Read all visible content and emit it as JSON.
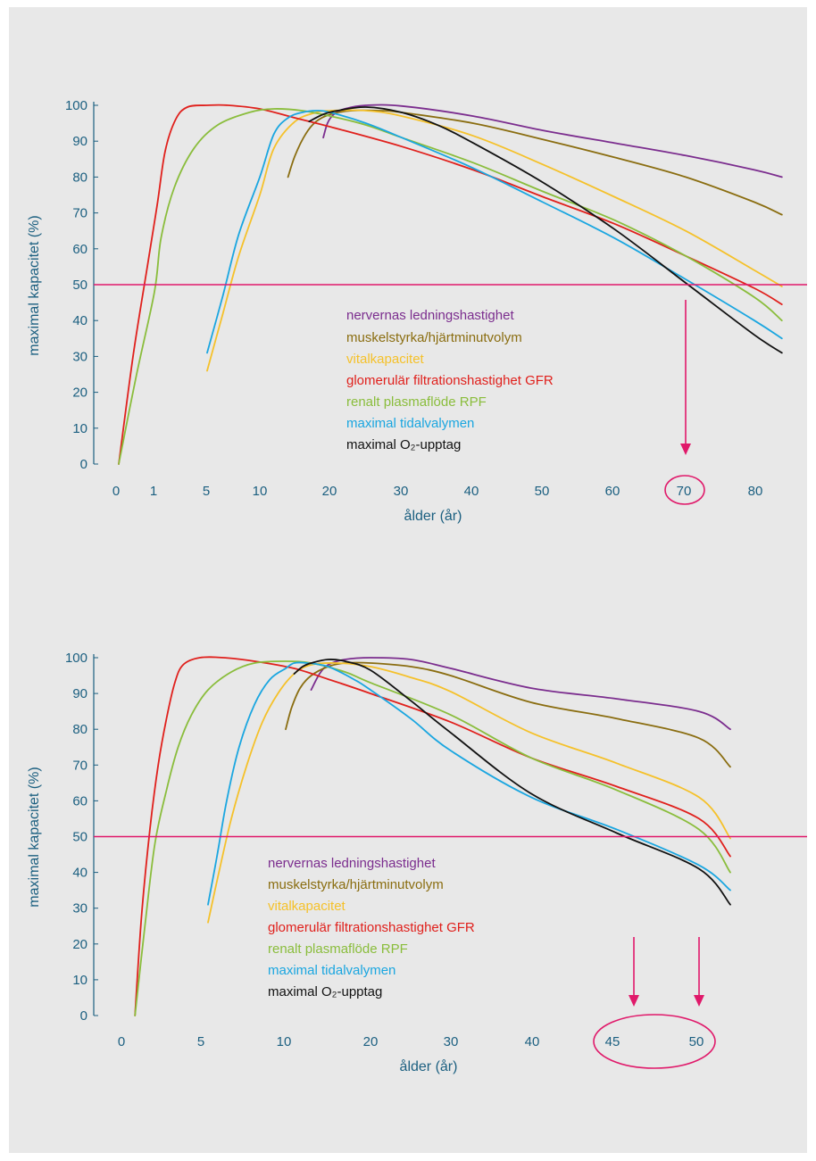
{
  "colors": {
    "axis": "#1b5f80",
    "tick_text": "#1b5f80",
    "threshold": "#e0196a",
    "panel_bg": "#e8e8e8"
  },
  "chart_data": [
    {
      "type": "line",
      "xlabel": "ålder (år)",
      "ylabel": "maximal kapacitet (%)",
      "x_ticks": [
        "0",
        "1",
        "5",
        "10",
        "20",
        "30",
        "40",
        "50",
        "60",
        "70",
        "80"
      ],
      "y_ticks": [
        0,
        10,
        20,
        30,
        40,
        50,
        60,
        70,
        80,
        90,
        100
      ],
      "ylim": [
        0,
        100
      ],
      "threshold_y": 50,
      "highlight_tick": "70",
      "arrows_at_x": [
        70
      ],
      "grid": false,
      "legend_position": "center",
      "series": [
        {
          "name": "nervernas ledningshastighet",
          "color": "#7b2d8e",
          "x": [
            19,
            19.6,
            20.5,
            22,
            25,
            30,
            40,
            50,
            60,
            70,
            80,
            84
          ],
          "y": [
            91,
            95,
            97.5,
            99,
            100,
            99.8,
            97,
            93,
            89.5,
            86,
            82,
            80
          ]
        },
        {
          "name": "muskelstyrka/hjärtminutvolym",
          "color": "#8a6d10",
          "x": [
            14,
            15,
            16.5,
            18,
            20,
            23,
            27,
            30,
            40,
            50,
            60,
            70,
            80,
            84
          ],
          "y": [
            80,
            86,
            92,
            95.5,
            97.5,
            98.5,
            98.5,
            98,
            95,
            90.5,
            85.5,
            80,
            73,
            69.5
          ]
        },
        {
          "name": "vitalkapacitet",
          "color": "#f5c12a",
          "x": [
            5,
            6.5,
            8,
            10,
            12,
            15,
            18,
            20,
            25,
            30,
            40,
            50,
            60,
            70,
            80,
            84
          ],
          "y": [
            26,
            42,
            58,
            75,
            88,
            95.5,
            98,
            98.5,
            98.5,
            97,
            91.5,
            83.5,
            74.5,
            65,
            54,
            49.5
          ]
        },
        {
          "name": "glomerulär filtrationshastighet GFR",
          "color": "#e0201c",
          "x": [
            0,
            0.4,
            0.8,
            1.2,
            1.8,
            2.6,
            3.5,
            5,
            7,
            10,
            15,
            20,
            30,
            40,
            50,
            60,
            70,
            80,
            84
          ],
          "y": [
            0,
            30,
            55,
            72,
            87,
            96,
            99.5,
            100,
            100,
            99,
            96.5,
            94,
            88.5,
            82,
            74.5,
            67,
            58,
            49,
            44.5
          ]
        },
        {
          "name": "renalt plasmaflöde RPF",
          "color": "#8abd3c",
          "x": [
            0,
            0.5,
            1,
            1.5,
            2.5,
            4,
            6,
            9,
            12,
            16,
            20,
            25,
            30,
            40,
            50,
            60,
            70,
            80,
            84
          ],
          "y": [
            0,
            25,
            48,
            63,
            77,
            88,
            94.5,
            98,
            99,
            98.5,
            97,
            94.5,
            91,
            84,
            76,
            68,
            58,
            46.5,
            40
          ]
        },
        {
          "name": "maximal tidalvalymen",
          "color": "#1aa6e0",
          "x": [
            5,
            6.5,
            8,
            10,
            12,
            14,
            16,
            18,
            20,
            25,
            30,
            40,
            50,
            60,
            70,
            80,
            84
          ],
          "y": [
            31,
            47,
            64,
            80,
            92,
            96.5,
            98,
            98.5,
            98,
            95,
            91,
            82.5,
            73,
            63,
            51.5,
            40,
            35
          ]
        },
        {
          "name": "maximal O₂-upptag",
          "color": "#111111",
          "x": [
            17,
            19,
            21,
            25,
            30,
            35,
            40,
            50,
            60,
            70,
            80,
            84
          ],
          "y": [
            95.5,
            97.5,
            98.5,
            99.5,
            98,
            94.5,
            89.5,
            78.5,
            65.5,
            50.5,
            36,
            31
          ]
        }
      ]
    },
    {
      "type": "line",
      "xlabel": "ålder (år)",
      "ylabel": "maximal kapacitet (%)",
      "x_ticks": [
        "0",
        "5",
        "10",
        "20",
        "30",
        "40",
        "45",
        "50"
      ],
      "y_ticks": [
        0,
        10,
        20,
        30,
        40,
        50,
        60,
        70,
        80,
        90,
        100
      ],
      "ylim": [
        0,
        100
      ],
      "threshold_y": 50,
      "highlight_tick": "45–50",
      "arrows_at_x": [
        46,
        50
      ],
      "grid": false,
      "legend_position": "center",
      "series": [
        {
          "name": "nervernas ledningshastighet",
          "color": "#7b2d8e",
          "x": [
            13,
            14,
            15,
            17,
            20,
            25,
            30,
            40,
            45,
            50,
            53
          ],
          "y": [
            91,
            95.5,
            98,
            99.5,
            100,
            99.5,
            97,
            91.5,
            88.5,
            85,
            80
          ]
        },
        {
          "name": "muskelstyrka/hjärtminutvolym",
          "color": "#8a6d10",
          "x": [
            10,
            10.7,
            11.7,
            13,
            15,
            17,
            20,
            25,
            30,
            40,
            45,
            50,
            53
          ],
          "y": [
            80,
            86,
            91.5,
            95,
            97.5,
            98.5,
            98.5,
            97.5,
            95,
            87.5,
            83,
            77.5,
            69.5
          ]
        },
        {
          "name": "vitalkapacitet",
          "color": "#f5c12a",
          "x": [
            5,
            5.7,
            6.5,
            7.5,
            8.5,
            9.5,
            11,
            13,
            16,
            20,
            25,
            30,
            40,
            45,
            50,
            53
          ],
          "y": [
            26,
            40,
            55,
            70,
            82,
            90,
            95.5,
            98,
            98.5,
            97.5,
            94.5,
            90.5,
            79,
            70.5,
            61,
            49.5
          ]
        },
        {
          "name": "glomerulär filtrationshastighet GFR",
          "color": "#e0201c",
          "x": [
            0.6,
            1,
            1.5,
            2,
            2.5,
            3,
            3.5,
            4.5,
            6,
            8,
            11,
            15,
            20,
            30,
            40,
            45,
            50,
            53
          ],
          "y": [
            0,
            28,
            52,
            70,
            83,
            93,
            98,
            100,
            100,
            99,
            97,
            94,
            90,
            82,
            72,
            64,
            55,
            44.5
          ]
        },
        {
          "name": "renalt plasmaflöde RPF",
          "color": "#8abd3c",
          "x": [
            0.6,
            1.2,
            1.8,
            2.5,
            3.2,
            4,
            5,
            6.5,
            8,
            10,
            13,
            17,
            20,
            30,
            40,
            45,
            50,
            53
          ],
          "y": [
            0,
            25,
            48,
            63,
            75,
            84,
            91,
            96,
            98.5,
            99,
            98.5,
            96,
            93,
            84,
            72,
            63,
            52,
            40
          ]
        },
        {
          "name": "maximal tidalvalymen",
          "color": "#1aa6e0",
          "x": [
            5,
            5.6,
            6.2,
            7,
            8,
            9,
            10,
            11,
            12.5,
            15,
            18,
            20,
            25,
            30,
            40,
            45,
            50,
            53
          ],
          "y": [
            31,
            45,
            60,
            75,
            87,
            94,
            97,
            98.5,
            98.5,
            97.5,
            94,
            91,
            83,
            74,
            61,
            52,
            42,
            35
          ]
        },
        {
          "name": "maximal O₂-upptag",
          "color": "#111111",
          "x": [
            11,
            12,
            13,
            15,
            17,
            20,
            25,
            30,
            40,
            45,
            50,
            53
          ],
          "y": [
            95.5,
            97.5,
            98.5,
            99.5,
            99,
            96.5,
            88,
            79,
            62,
            51,
            41,
            31
          ]
        }
      ]
    }
  ]
}
